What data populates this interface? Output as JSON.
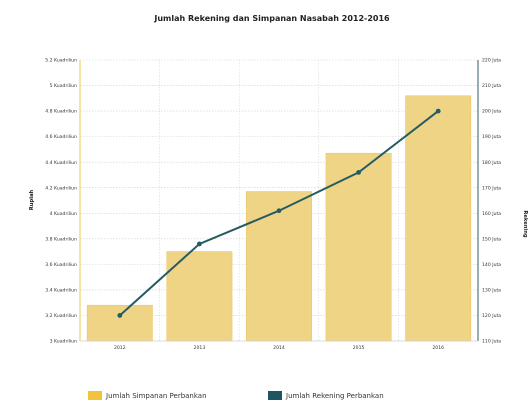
{
  "chart_data": {
    "type": "bar",
    "title": "Jumlah Rekening dan Simpanan Nasabah 2012-2016",
    "categories": [
      "2012",
      "2013",
      "2014",
      "2015",
      "2016"
    ],
    "y_left": {
      "label": "Rupiah",
      "range": [
        3.0,
        5.2
      ],
      "ticks": [
        "3 Kuadriliun",
        "3.2 Kuadriliun",
        "3.4 Kuadriliun",
        "3.6 Kuadriliun",
        "3.8 Kuadriliun",
        "4 Kuadriliun",
        "4.2 Kuadriliun",
        "4.4 Kuadriliun",
        "4.6 Kuadriliun",
        "4.8 Kuadriliun",
        "5 Kuadriliun",
        "5.2 Kuadriliun"
      ],
      "tick_values": [
        3.0,
        3.2,
        3.4,
        3.6,
        3.8,
        4.0,
        4.2,
        4.4,
        4.6,
        4.8,
        5.0,
        5.2
      ]
    },
    "y_right": {
      "label": "Rekening",
      "range": [
        110,
        220
      ],
      "ticks": [
        "110 Juta",
        "120 Juta",
        "130 Juta",
        "140 Juta",
        "150 Juta",
        "160 Juta",
        "170 Juta",
        "180 Juta",
        "190 Juta",
        "200 Juta",
        "210 Juta",
        "220 Juta"
      ],
      "tick_values": [
        110,
        120,
        130,
        140,
        150,
        160,
        170,
        180,
        190,
        200,
        210,
        220
      ]
    },
    "series": [
      {
        "name": "Jumlah Simpanan Perbankan",
        "type": "bar",
        "axis": "left",
        "unit": "Kuadriliun",
        "color": "#f0d486",
        "values": [
          3.28,
          3.7,
          4.17,
          4.47,
          4.92
        ]
      },
      {
        "name": "Jumlah Rekening Perbankan",
        "type": "line",
        "axis": "right",
        "unit": "Juta",
        "color": "#255c62",
        "values": [
          120,
          148,
          161,
          176,
          200
        ]
      }
    ],
    "grid": true,
    "legend_position": "bottom"
  },
  "legend": {
    "items": [
      {
        "label": "Jumlah Simpanan Perbankan",
        "color": "#f0c53c"
      },
      {
        "label": "Jumlah Rekening Perbankan",
        "color": "#1e5560"
      }
    ]
  }
}
